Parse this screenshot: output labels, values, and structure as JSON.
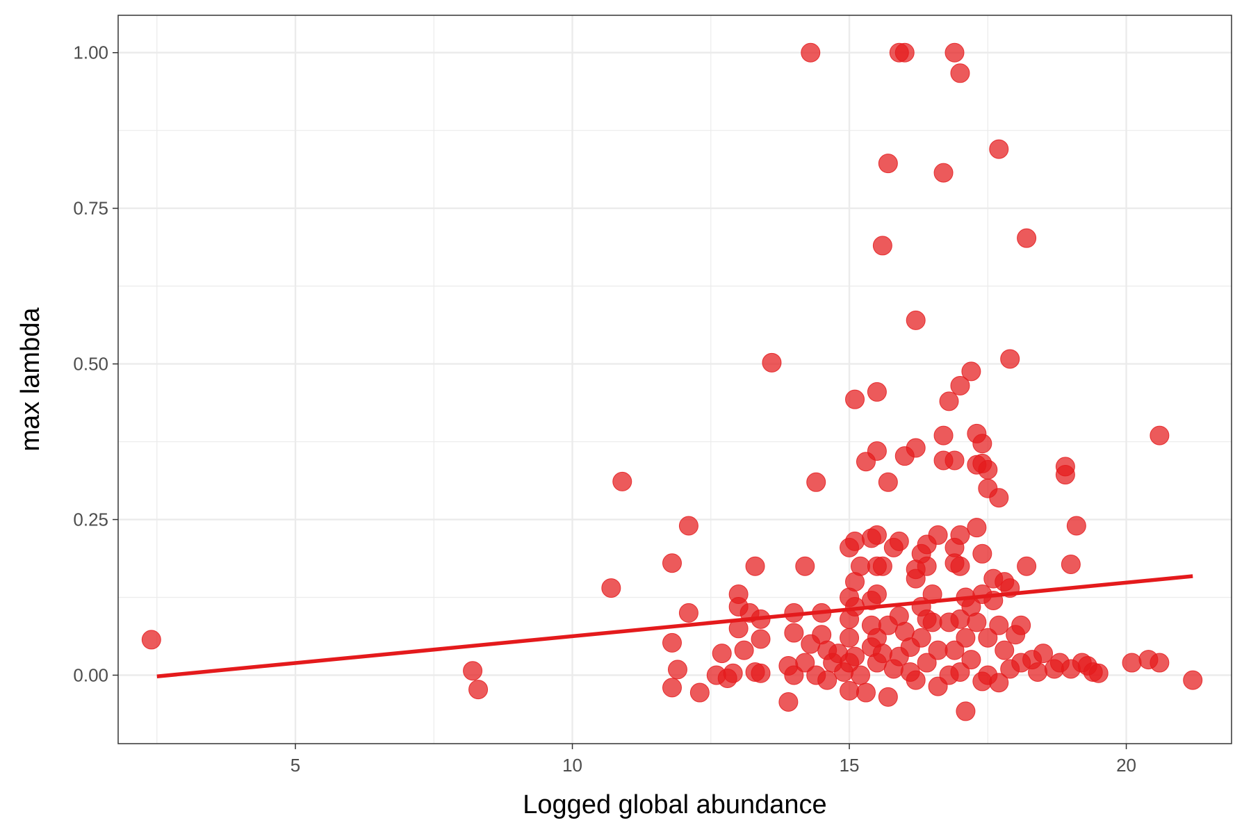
{
  "chart_data": {
    "type": "scatter",
    "xlabel": "Logged global abundance",
    "ylabel": "max lambda",
    "xlim": [
      1.8,
      21.9
    ],
    "ylim": [
      -0.11,
      1.06
    ],
    "x_ticks": [
      {
        "value": 5,
        "label": "5"
      },
      {
        "value": 10,
        "label": "10"
      },
      {
        "value": 15,
        "label": "15"
      },
      {
        "value": 20,
        "label": "20"
      }
    ],
    "x_minor": [
      2.5,
      7.5,
      12.5,
      17.5
    ],
    "y_ticks": [
      {
        "value": 0,
        "label": "0.00"
      },
      {
        "value": 0.25,
        "label": "0.25"
      },
      {
        "value": 0.5,
        "label": "0.50"
      },
      {
        "value": 0.75,
        "label": "0.75"
      },
      {
        "value": 1,
        "label": "1.00"
      }
    ],
    "y_minor": [
      0.125,
      0.375,
      0.625,
      0.875
    ],
    "grid": true,
    "colors": {
      "points": "#e41a1c",
      "line": "#e41a1c",
      "grid": "#ebebeb",
      "border": "#333333"
    },
    "trend_line": {
      "x": [
        2.5,
        21.2
      ],
      "y": [
        -0.002,
        0.159
      ]
    },
    "points": [
      [
        2.4,
        0.057
      ],
      [
        8.2,
        0.007
      ],
      [
        8.3,
        -0.023
      ],
      [
        10.7,
        0.14
      ],
      [
        10.9,
        0.311
      ],
      [
        11.8,
        0.18
      ],
      [
        11.8,
        0.052
      ],
      [
        11.8,
        -0.02
      ],
      [
        11.9,
        0.009
      ],
      [
        12.1,
        0.24
      ],
      [
        12.1,
        0.1
      ],
      [
        12.3,
        -0.028
      ],
      [
        12.6,
        0.0
      ],
      [
        12.7,
        0.035
      ],
      [
        12.8,
        -0.005
      ],
      [
        12.9,
        0.003
      ],
      [
        13.0,
        0.13
      ],
      [
        13.0,
        0.11
      ],
      [
        13.0,
        0.075
      ],
      [
        13.1,
        0.04
      ],
      [
        13.2,
        0.1
      ],
      [
        13.3,
        0.005
      ],
      [
        13.3,
        0.175
      ],
      [
        13.4,
        0.09
      ],
      [
        13.4,
        0.058
      ],
      [
        13.4,
        0.003
      ],
      [
        13.6,
        0.502
      ],
      [
        13.9,
        0.015
      ],
      [
        13.9,
        -0.043
      ],
      [
        14.0,
        0.1
      ],
      [
        14.0,
        0.068
      ],
      [
        14.0,
        0.0
      ],
      [
        14.2,
        0.02
      ],
      [
        14.2,
        0.175
      ],
      [
        14.3,
        1.0
      ],
      [
        14.3,
        0.05
      ],
      [
        14.4,
        0.31
      ],
      [
        14.4,
        0.0
      ],
      [
        14.5,
        0.1
      ],
      [
        14.5,
        0.065
      ],
      [
        14.6,
        0.04
      ],
      [
        14.6,
        -0.008
      ],
      [
        14.7,
        0.02
      ],
      [
        14.8,
        0.035
      ],
      [
        14.9,
        0.005
      ],
      [
        15.0,
        0.205
      ],
      [
        15.0,
        0.125
      ],
      [
        15.0,
        0.09
      ],
      [
        15.0,
        0.06
      ],
      [
        15.0,
        0.02
      ],
      [
        15.0,
        -0.025
      ],
      [
        15.1,
        0.215
      ],
      [
        15.1,
        0.15
      ],
      [
        15.1,
        0.11
      ],
      [
        15.1,
        0.03
      ],
      [
        15.1,
        0.443
      ],
      [
        15.2,
        0.175
      ],
      [
        15.2,
        0.0
      ],
      [
        15.3,
        -0.028
      ],
      [
        15.3,
        0.343
      ],
      [
        15.4,
        0.22
      ],
      [
        15.4,
        0.12
      ],
      [
        15.4,
        0.08
      ],
      [
        15.4,
        0.045
      ],
      [
        15.5,
        0.225
      ],
      [
        15.5,
        0.175
      ],
      [
        15.5,
        0.13
      ],
      [
        15.5,
        0.06
      ],
      [
        15.5,
        0.02
      ],
      [
        15.5,
        0.455
      ],
      [
        15.5,
        0.36
      ],
      [
        15.6,
        0.69
      ],
      [
        15.6,
        0.175
      ],
      [
        15.6,
        0.035
      ],
      [
        15.7,
        0.822
      ],
      [
        15.7,
        0.31
      ],
      [
        15.7,
        0.08
      ],
      [
        15.7,
        -0.035
      ],
      [
        15.8,
        0.205
      ],
      [
        15.8,
        0.01
      ],
      [
        15.9,
        1.0
      ],
      [
        15.9,
        0.215
      ],
      [
        15.9,
        0.095
      ],
      [
        15.9,
        0.03
      ],
      [
        16.0,
        1.0
      ],
      [
        16.0,
        0.352
      ],
      [
        16.0,
        0.07
      ],
      [
        16.1,
        0.045
      ],
      [
        16.1,
        0.005
      ],
      [
        16.2,
        0.57
      ],
      [
        16.2,
        0.365
      ],
      [
        16.2,
        0.17
      ],
      [
        16.2,
        0.155
      ],
      [
        16.2,
        -0.008
      ],
      [
        16.3,
        0.195
      ],
      [
        16.3,
        0.11
      ],
      [
        16.3,
        0.06
      ],
      [
        16.4,
        0.21
      ],
      [
        16.4,
        0.175
      ],
      [
        16.4,
        0.09
      ],
      [
        16.4,
        0.02
      ],
      [
        16.5,
        0.13
      ],
      [
        16.5,
        0.085
      ],
      [
        16.6,
        0.225
      ],
      [
        16.6,
        0.04
      ],
      [
        16.6,
        -0.018
      ],
      [
        16.7,
        0.385
      ],
      [
        16.7,
        0.345
      ],
      [
        16.7,
        0.807
      ],
      [
        16.8,
        0.44
      ],
      [
        16.8,
        0.085
      ],
      [
        16.8,
        0.0
      ],
      [
        16.9,
        1.0
      ],
      [
        16.9,
        0.345
      ],
      [
        16.9,
        0.205
      ],
      [
        16.9,
        0.18
      ],
      [
        16.9,
        0.04
      ],
      [
        17.0,
        0.967
      ],
      [
        17.0,
        0.465
      ],
      [
        17.0,
        0.225
      ],
      [
        17.0,
        0.175
      ],
      [
        17.0,
        0.09
      ],
      [
        17.0,
        0.005
      ],
      [
        17.1,
        0.125
      ],
      [
        17.1,
        0.06
      ],
      [
        17.1,
        -0.058
      ],
      [
        17.2,
        0.488
      ],
      [
        17.2,
        0.11
      ],
      [
        17.2,
        0.025
      ],
      [
        17.3,
        0.388
      ],
      [
        17.3,
        0.338
      ],
      [
        17.3,
        0.237
      ],
      [
        17.3,
        0.085
      ],
      [
        17.4,
        0.372
      ],
      [
        17.4,
        0.34
      ],
      [
        17.4,
        0.195
      ],
      [
        17.4,
        0.13
      ],
      [
        17.4,
        -0.01
      ],
      [
        17.5,
        0.33
      ],
      [
        17.5,
        0.3
      ],
      [
        17.5,
        0.06
      ],
      [
        17.5,
        0.0
      ],
      [
        17.6,
        0.155
      ],
      [
        17.6,
        0.12
      ],
      [
        17.7,
        0.845
      ],
      [
        17.7,
        0.285
      ],
      [
        17.7,
        0.08
      ],
      [
        17.7,
        -0.012
      ],
      [
        17.8,
        0.15
      ],
      [
        17.8,
        0.04
      ],
      [
        17.9,
        0.508
      ],
      [
        17.9,
        0.14
      ],
      [
        17.9,
        0.01
      ],
      [
        18.0,
        0.065
      ],
      [
        18.1,
        0.08
      ],
      [
        18.1,
        0.02
      ],
      [
        18.2,
        0.702
      ],
      [
        18.2,
        0.175
      ],
      [
        18.3,
        0.025
      ],
      [
        18.4,
        0.005
      ],
      [
        18.5,
        0.035
      ],
      [
        18.7,
        0.01
      ],
      [
        18.8,
        0.02
      ],
      [
        18.9,
        0.322
      ],
      [
        18.9,
        0.335
      ],
      [
        19.0,
        0.178
      ],
      [
        19.0,
        0.01
      ],
      [
        19.1,
        0.24
      ],
      [
        19.2,
        0.02
      ],
      [
        19.3,
        0.015
      ],
      [
        19.4,
        0.005
      ],
      [
        19.5,
        0.003
      ],
      [
        20.1,
        0.02
      ],
      [
        20.4,
        0.025
      ],
      [
        20.6,
        0.02
      ],
      [
        20.6,
        0.385
      ],
      [
        21.2,
        -0.008
      ]
    ]
  }
}
